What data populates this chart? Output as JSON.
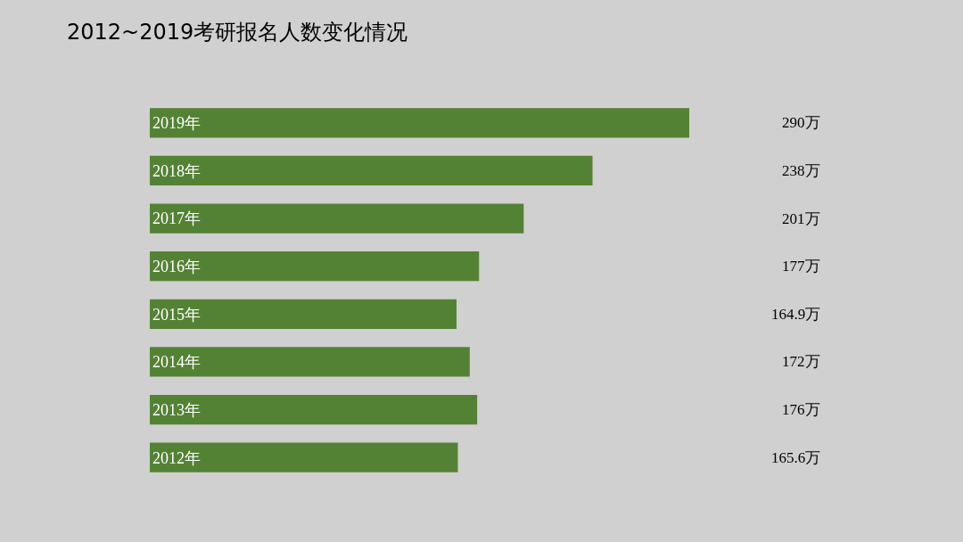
{
  "chart_data": {
    "type": "bar",
    "orientation": "horizontal",
    "title": "2012~2019考研报名人数变化情况",
    "categories": [
      "2019年",
      "2018年",
      "2017年",
      "2016年",
      "2015年",
      "2014年",
      "2013年",
      "2012年"
    ],
    "values": [
      290,
      238,
      201,
      177,
      164.9,
      172,
      176,
      165.6
    ],
    "value_labels": [
      "290万",
      "238万",
      "201万",
      "177万",
      "164.9万",
      "172万",
      "176万",
      "165.6万"
    ],
    "color": "#548235",
    "grid": false,
    "legend": false
  }
}
